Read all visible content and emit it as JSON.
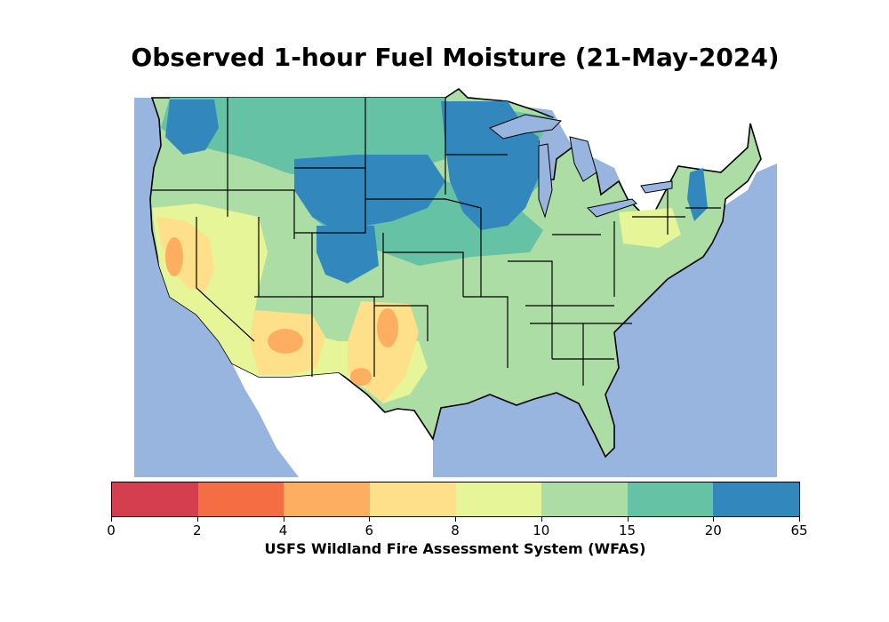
{
  "title": "Observed 1-hour Fuel Moisture (21-May-2024)",
  "caption": "USFS Wildland Fire Assessment System (WFAS)",
  "colors": {
    "water": "#98b5e0",
    "land_foreign": "#ffffff",
    "border": "#000000"
  },
  "colorbar": {
    "boundaries": [
      "0",
      "2",
      "4",
      "6",
      "8",
      "10",
      "15",
      "20",
      "65"
    ],
    "colors": [
      "#d53e4f",
      "#f46d43",
      "#fdae61",
      "#fee08b",
      "#e6f598",
      "#abdda4",
      "#66c2a5",
      "#3288bd"
    ]
  },
  "icons": {
    "map": "contour-map-icon"
  }
}
